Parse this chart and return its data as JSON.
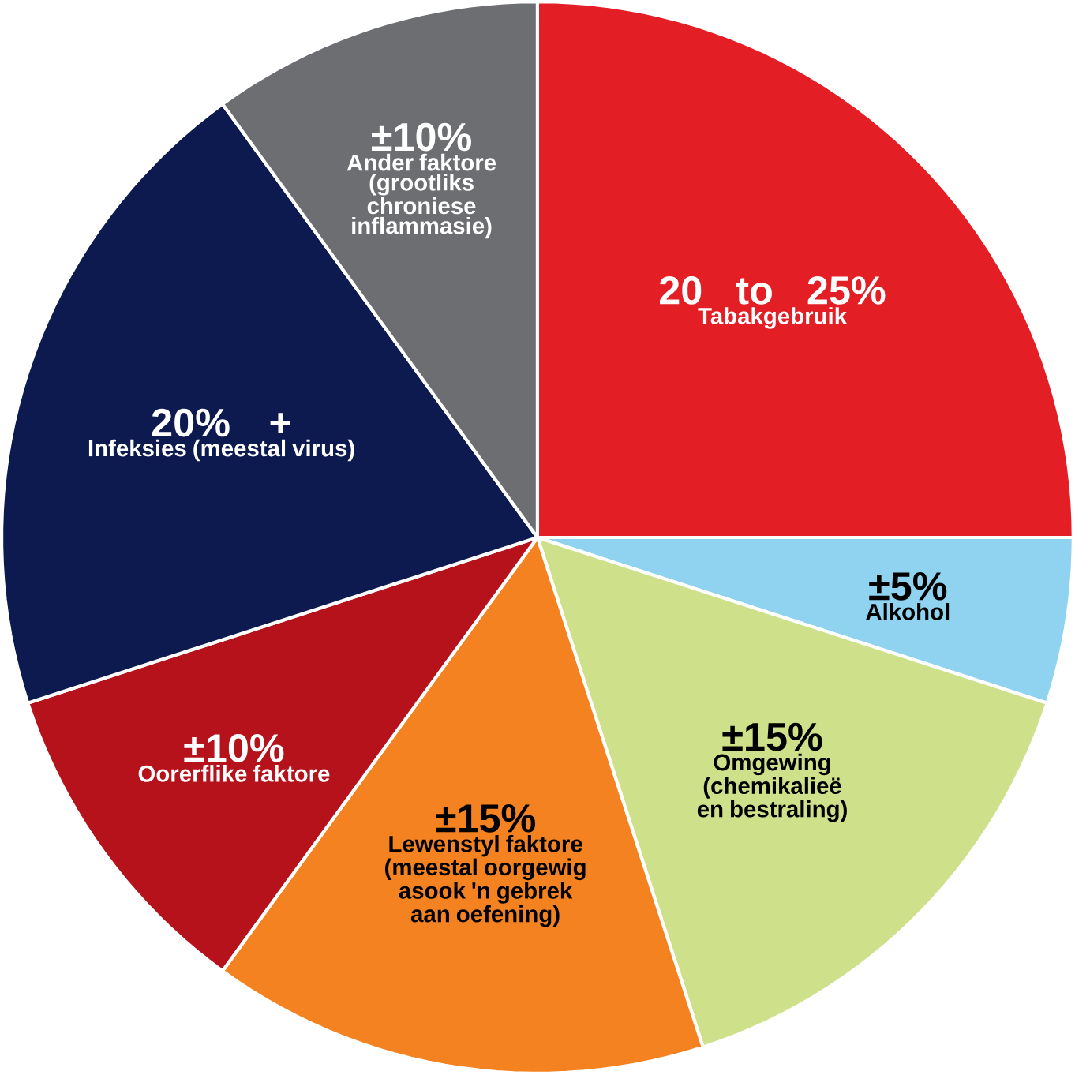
{
  "chart_data": {
    "type": "pie",
    "categories": [
      "Tabakgebruik",
      "Alkohol",
      "Omgewing (chemikalieë en bestraling)",
      "Lewenstyl faktore (meestal oorgewig asook 'n gebrek aan oefening)",
      "Oorerflike faktore",
      "Infeksies (meestal virus)",
      "Ander faktore (grootliks chroniese inflammasie)"
    ],
    "values": [
      25,
      5,
      15,
      15,
      10,
      20,
      10
    ],
    "value_labels": [
      "20 to 25%",
      "±5%",
      "±15%",
      "±15%",
      "±10%",
      "20% +",
      "±10%"
    ],
    "colors": [
      "#e31e24",
      "#8fd3f0",
      "#cfe08a",
      "#f58220",
      "#b5121b",
      "#0d1a4f",
      "#6d6e71"
    ]
  }
}
